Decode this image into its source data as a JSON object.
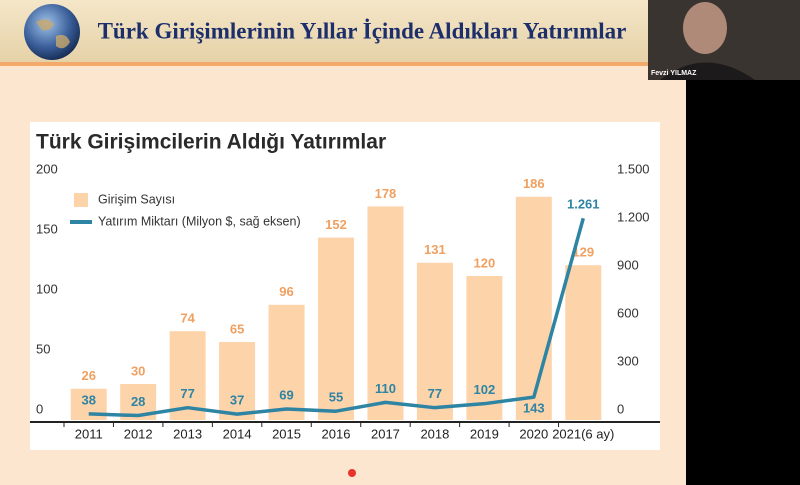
{
  "slide": {
    "title": "Türk Girişimlerinin Yıllar İçinde Aldıkları Yatırımlar"
  },
  "webcam": {
    "name": "Fevzi YILMAZ"
  },
  "chart_data": {
    "type": "bar",
    "title": "Türk Girişimcilerin Aldığı Yatırımlar",
    "categories": [
      "2011",
      "2012",
      "2013",
      "2014",
      "2015",
      "2016",
      "2017",
      "2018",
      "2019",
      "2020",
      "2021(6 ay)"
    ],
    "series": [
      {
        "name": "Girişim Sayısı",
        "color": "#fdd3aa",
        "type": "bar",
        "values": [
          26,
          30,
          74,
          65,
          96,
          152,
          178,
          131,
          120,
          186,
          129
        ]
      },
      {
        "name": "Yatırım Miktarı (Milyon $, sağ eksen)",
        "color": "#2e84a3",
        "type": "line",
        "axis": "y2",
        "values": [
          38,
          28,
          77,
          37,
          69,
          55,
          110,
          77,
          102,
          143,
          1261
        ],
        "value_labels": [
          "38",
          "28",
          "77",
          "37",
          "69",
          "55",
          "110",
          "77",
          "102",
          "143",
          "1.261"
        ]
      }
    ],
    "ylim": [
      0,
      200
    ],
    "yticks": [
      0,
      50,
      100,
      150,
      200
    ],
    "y2lim": [
      0,
      1500
    ],
    "y2ticks": [
      0,
      300,
      600,
      900,
      {
        "value": 1200,
        "label": "1.200"
      },
      {
        "value": 1500,
        "label": "1.500"
      }
    ],
    "grid": false
  }
}
